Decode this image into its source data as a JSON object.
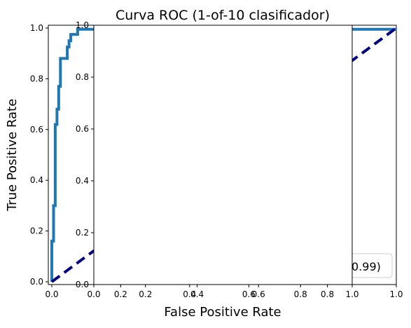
{
  "chart_data": {
    "type": "line",
    "title": "Curva ROC (1-of-10 clasificador)",
    "xlabel": "False Positive Rate",
    "ylabel": "True Positive Rate",
    "xlim": [
      0,
      1.0
    ],
    "ylim": [
      0,
      1.0
    ],
    "grid": false,
    "colors": {
      "roc": "#1f77b4",
      "diagonal": "#000080"
    },
    "series": [
      {
        "style": "solid",
        "x": [
          0.0,
          0.0,
          0.005,
          0.005,
          0.01,
          0.01,
          0.015,
          0.015,
          0.02,
          0.02,
          0.025,
          0.025,
          0.035,
          0.035,
          0.045,
          0.045,
          0.05,
          0.05,
          0.055,
          0.055,
          0.06,
          0.06,
          0.075,
          0.075,
          0.08,
          0.08,
          1.0
        ],
        "y": [
          0.0,
          0.16,
          0.16,
          0.3,
          0.3,
          0.62,
          0.62,
          0.68,
          0.68,
          0.77,
          0.77,
          0.88,
          0.88,
          0.88,
          0.88,
          0.925,
          0.925,
          0.95,
          0.95,
          0.975,
          0.975,
          0.975,
          0.975,
          0.995,
          0.995,
          0.995,
          0.995
        ]
      },
      {
        "style": "dashed",
        "x": [
          0.0,
          1.0
        ],
        "y": [
          0.0,
          1.0
        ]
      }
    ],
    "outer_axes": {
      "x_ticks": [
        "0.0",
        "0.2",
        "0.4",
        "0.6",
        "0.8",
        "1.0"
      ],
      "y_ticks": [
        "0.0",
        "0.2",
        "0.4",
        "0.6",
        "0.8",
        "1.0"
      ]
    },
    "inset_axes": {
      "x_ticks": [
        "0.0",
        "0.2",
        "0.4",
        "0.6",
        "0.8",
        "1.0"
      ],
      "y_ticks": [
        "0.0",
        "0.2",
        "0.4",
        "0.6",
        "0.8",
        "1.0"
      ]
    },
    "legend_fragment": "0.99)"
  }
}
